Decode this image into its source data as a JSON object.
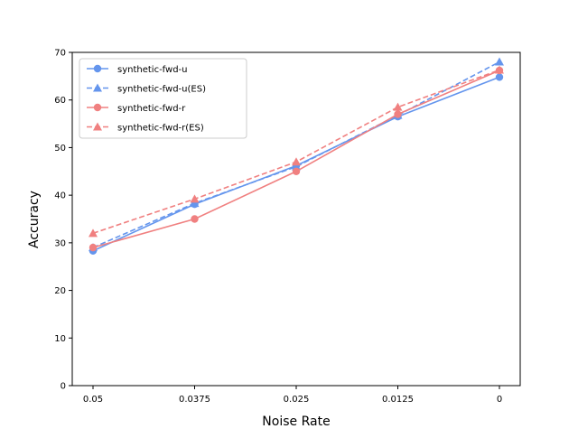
{
  "chart_data": {
    "type": "line",
    "title": "",
    "xlabel": "Noise Rate",
    "ylabel": "Accuracy",
    "categories": [
      "0.05",
      "0.0375",
      "0.025",
      "0.0125",
      "0"
    ],
    "ylim": [
      0,
      70
    ],
    "yticks": [
      0,
      10,
      20,
      30,
      40,
      50,
      60,
      70
    ],
    "grid": false,
    "legend_position": "top-left",
    "series": [
      {
        "name": "synthetic-fwd-u",
        "values": [
          28.3,
          38.1,
          46.2,
          56.5,
          64.8
        ],
        "color": "#6495ED",
        "dash": "solid",
        "marker": "circle"
      },
      {
        "name": "synthetic-fwd-u(ES)",
        "values": [
          29.0,
          38.3,
          46.0,
          56.8,
          68.0
        ],
        "color": "#6495ED",
        "dash": "dashed",
        "marker": "triangle"
      },
      {
        "name": "synthetic-fwd-r",
        "values": [
          29.0,
          35.0,
          45.0,
          57.0,
          66.2
        ],
        "color": "#F08080",
        "dash": "solid",
        "marker": "circle"
      },
      {
        "name": "synthetic-fwd-r(ES)",
        "values": [
          32.0,
          39.2,
          47.0,
          58.5,
          66.3
        ],
        "color": "#F08080",
        "dash": "dashed",
        "marker": "triangle"
      }
    ]
  }
}
